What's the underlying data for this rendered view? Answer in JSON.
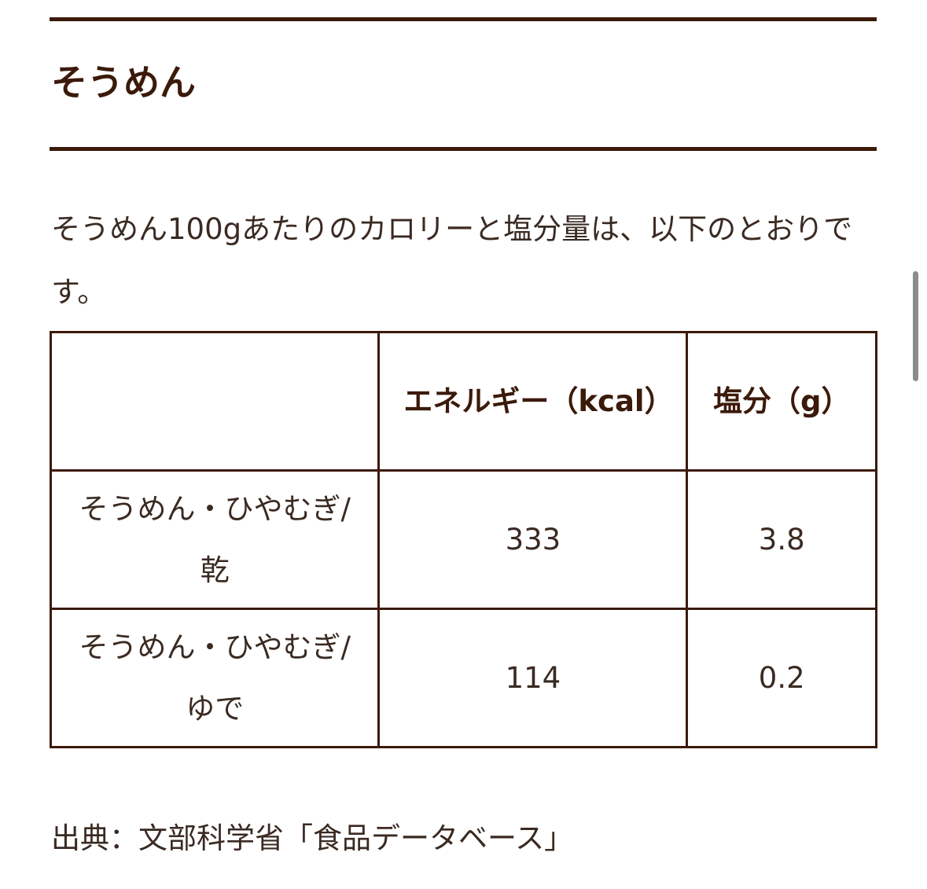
{
  "heading": "そうめん",
  "intro": "そうめん100gあたりのカロリーと塩分量は、以下のとおりです。",
  "table": {
    "headers": [
      "",
      "エネルギー（kcal）",
      "塩分（g）"
    ],
    "rows": [
      [
        "そうめん・ひやむぎ/乾",
        "333",
        "3.8"
      ],
      [
        "そうめん・ひやむぎ/ゆで",
        "114",
        "0.2"
      ]
    ]
  },
  "source": "出典：文部科学省「食品データベース」",
  "colors": {
    "accent": "#3b1a0a"
  }
}
